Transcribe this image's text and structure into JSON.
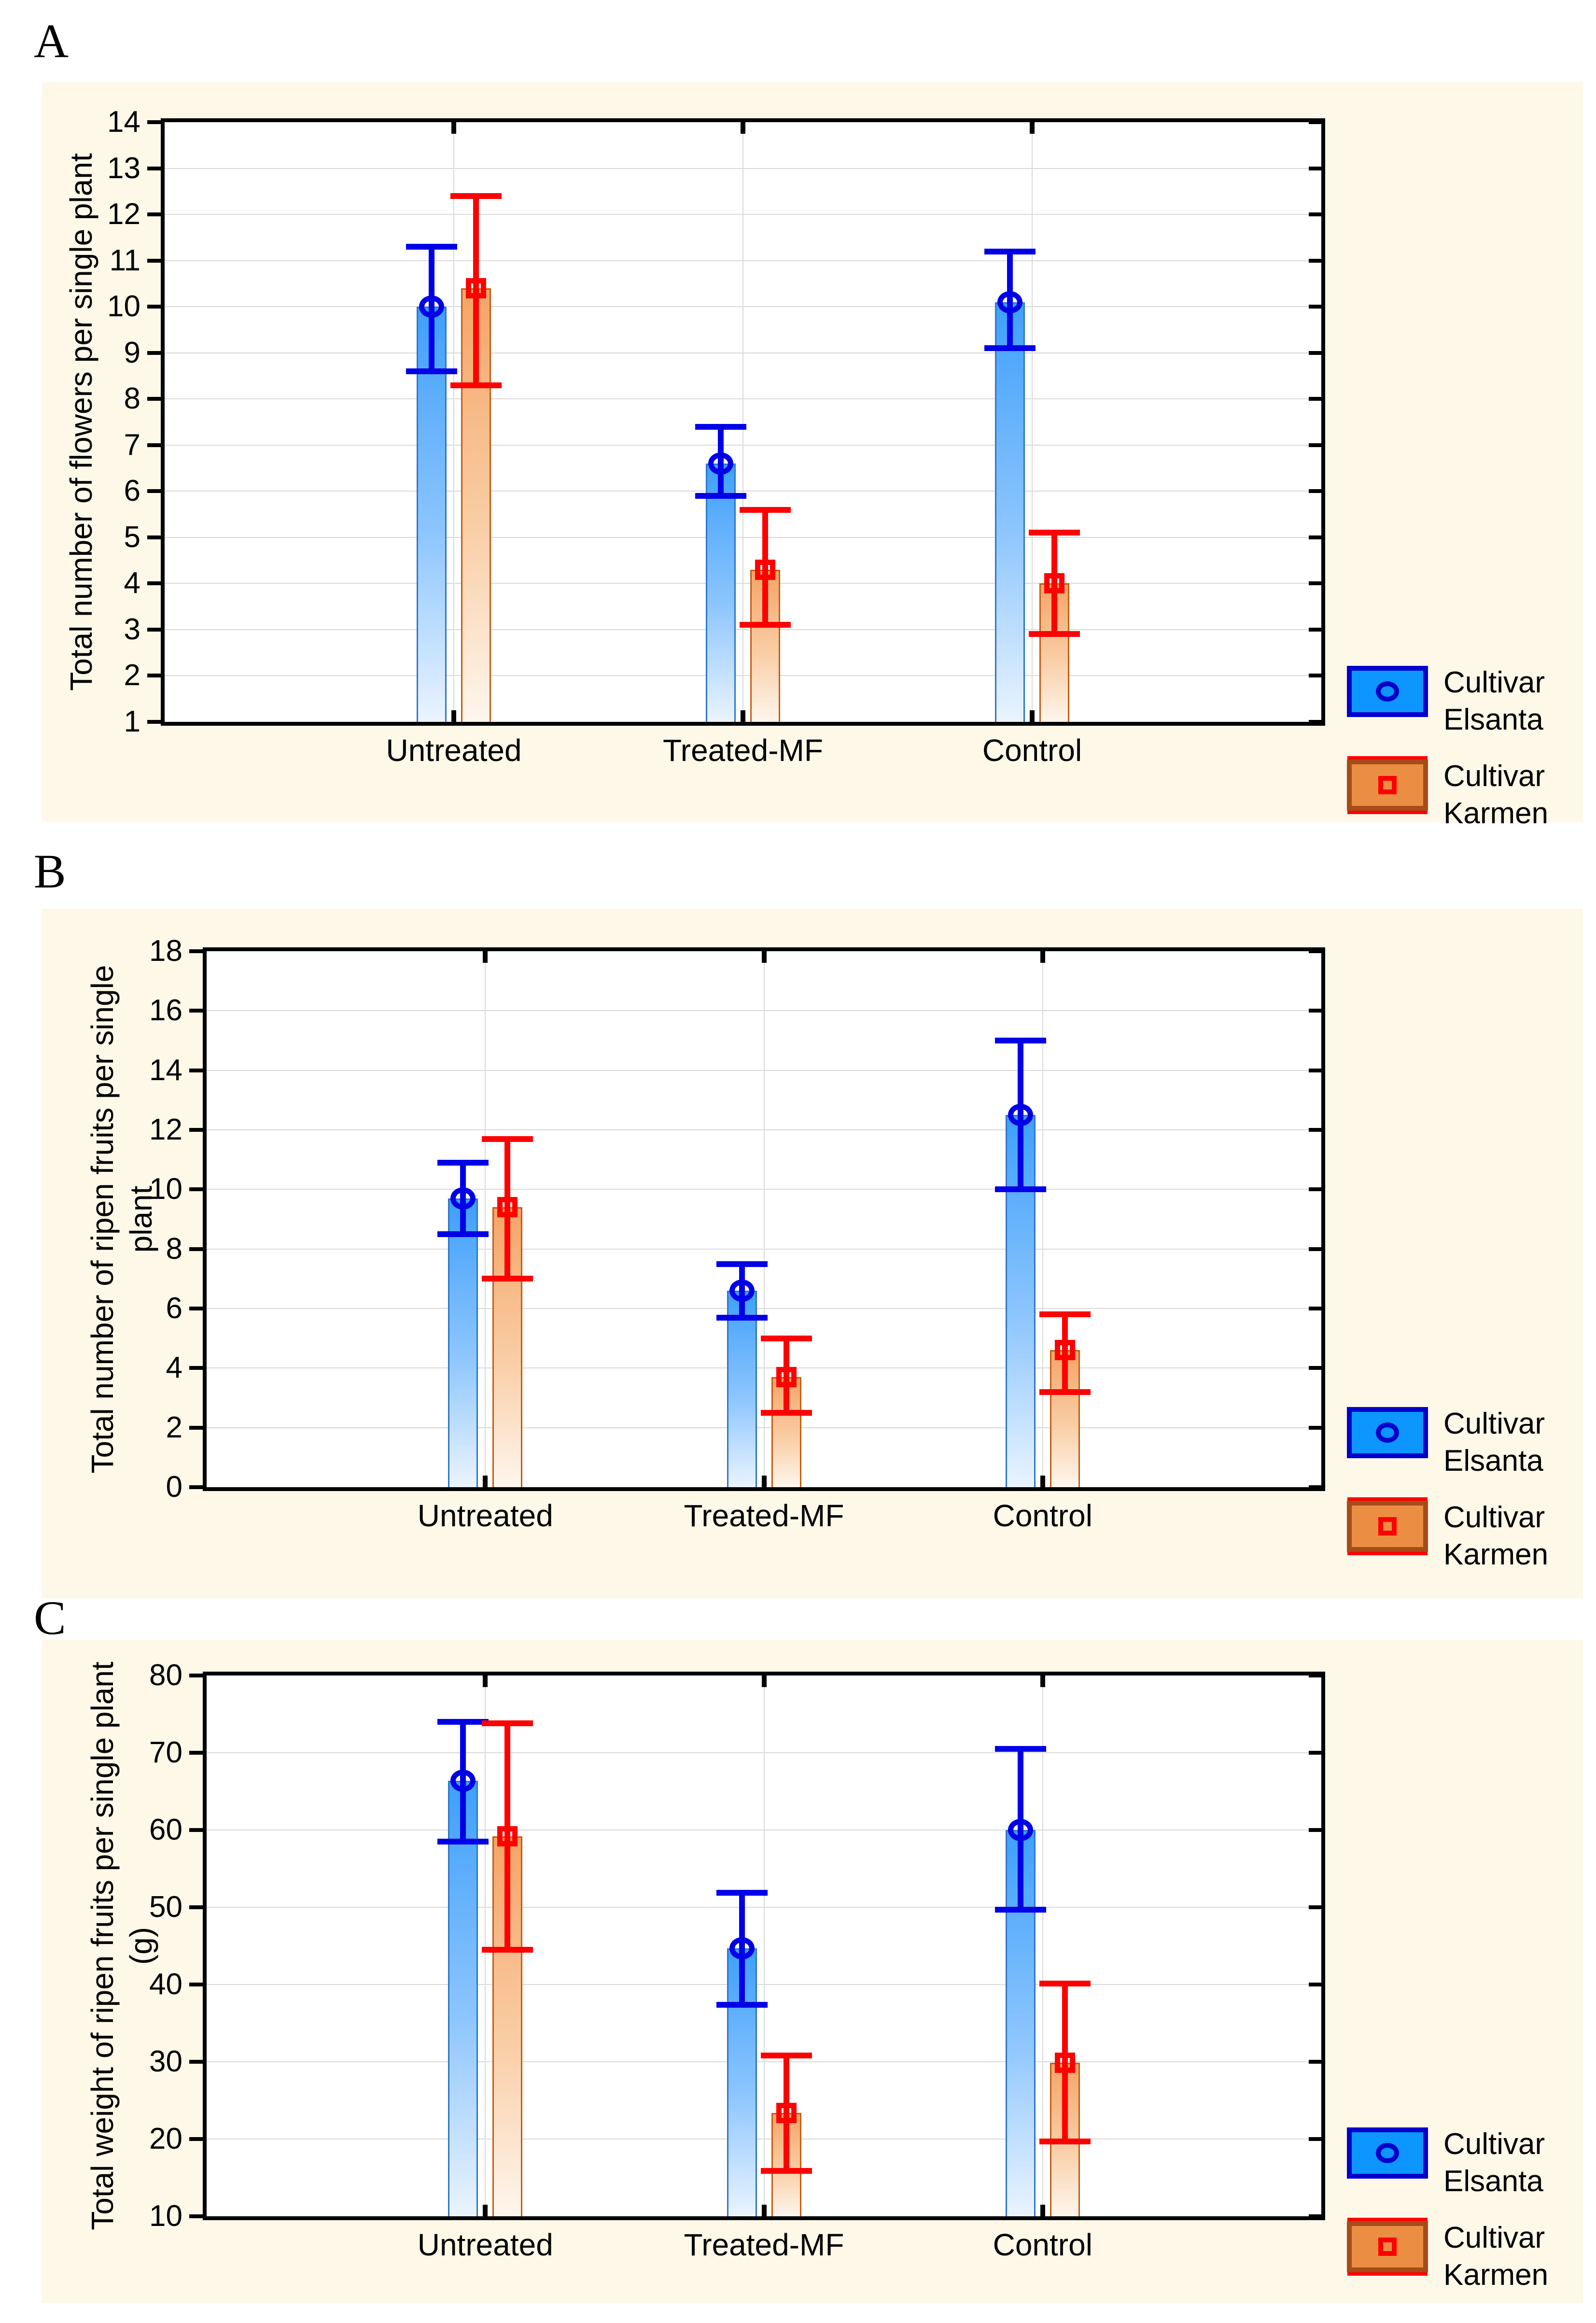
{
  "figure": {
    "background_color": "#FDF8E7",
    "plot_background": "#FFFFFF",
    "gridline_color": "#D9D9D9",
    "axis_color": "#000000"
  },
  "legend": {
    "position": "right-bottom",
    "items": [
      {
        "series": "elsanta",
        "line1": "Cultivar",
        "line2": "Elsanta",
        "swatch_fill": "#0D96FF",
        "swatch_border": "#0000CD",
        "marker": "circle-icon",
        "marker_color": "#0000E8"
      },
      {
        "series": "karmen",
        "line1": "Cultivar",
        "line2": "Karmen",
        "swatch_fill": "#EB8E44",
        "swatch_border": "#A64B1A",
        "marker": "square-icon",
        "marker_color": "#FF0000"
      }
    ]
  },
  "chart_data": [
    {
      "type": "bar",
      "panel_label": "A",
      "ylabel_lines": [
        "Total number of flowers per single plant"
      ],
      "categories": [
        "Untreated",
        "Treated-MF",
        "Control"
      ],
      "ylim": [
        1,
        14
      ],
      "ytick_step": 1,
      "yticks": [
        "14",
        "13",
        "12",
        "11",
        "10",
        "9",
        "8",
        "7",
        "6",
        "5",
        "4",
        "3",
        "2",
        "1"
      ],
      "grid": true,
      "legend_position": "right-bottom",
      "series": [
        {
          "name": "Cultivar Elsanta",
          "marker": "circle",
          "color": "#3E9FFB",
          "error_color": "#0000E8",
          "means": [
            10.0,
            6.6,
            10.1
          ],
          "ci_low": [
            8.6,
            5.9,
            9.1
          ],
          "ci_high": [
            11.3,
            7.4,
            11.2
          ]
        },
        {
          "name": "Cultivar Karmen",
          "marker": "square",
          "color": "#F5A467",
          "error_color": "#FF0000",
          "means": [
            10.4,
            4.3,
            4.0
          ],
          "ci_low": [
            8.3,
            3.1,
            2.9
          ],
          "ci_high": [
            12.4,
            5.6,
            5.1
          ]
        }
      ]
    },
    {
      "type": "bar",
      "panel_label": "B",
      "ylabel_lines": [
        "Total number of ripen fruits per single",
        "plant"
      ],
      "categories": [
        "Untreated",
        "Treated-MF",
        "Control"
      ],
      "ylim": [
        0,
        18
      ],
      "ytick_step": 2,
      "yticks": [
        "18",
        "16",
        "14",
        "12",
        "10",
        "8",
        "6",
        "4",
        "2",
        "0"
      ],
      "grid": true,
      "legend_position": "right-bottom",
      "series": [
        {
          "name": "Cultivar Elsanta",
          "marker": "circle",
          "color": "#3E9FFB",
          "error_color": "#0000E8",
          "means": [
            9.7,
            6.6,
            12.5
          ],
          "ci_low": [
            8.5,
            5.7,
            10.0
          ],
          "ci_high": [
            10.9,
            7.5,
            15.0
          ]
        },
        {
          "name": "Cultivar Karmen",
          "marker": "square",
          "color": "#F5A467",
          "error_color": "#FF0000",
          "means": [
            9.4,
            3.7,
            4.6
          ],
          "ci_low": [
            7.0,
            2.5,
            3.2
          ],
          "ci_high": [
            11.7,
            5.0,
            5.8
          ]
        }
      ]
    },
    {
      "type": "bar",
      "panel_label": "C",
      "ylabel_lines": [
        "Total weight of ripen fruits per single plant",
        "(g)"
      ],
      "categories": [
        "Untreated",
        "Treated-MF",
        "Control"
      ],
      "ylim": [
        10,
        80
      ],
      "ytick_step": 10,
      "yticks": [
        "80",
        "70",
        "60",
        "50",
        "40",
        "30",
        "20",
        "10"
      ],
      "grid": true,
      "legend_position": "right-bottom",
      "series": [
        {
          "name": "Cultivar Elsanta",
          "marker": "circle",
          "color": "#3E9FFB",
          "error_color": "#0000E8",
          "means": [
            66.4,
            44.7,
            60.0
          ],
          "ci_low": [
            58.5,
            37.4,
            49.7
          ],
          "ci_high": [
            74.0,
            51.9,
            70.5
          ]
        },
        {
          "name": "Cultivar Karmen",
          "marker": "square",
          "color": "#F5A467",
          "error_color": "#FF0000",
          "means": [
            59.2,
            23.4,
            29.9
          ],
          "ci_low": [
            44.5,
            15.9,
            19.7
          ],
          "ci_high": [
            73.8,
            30.8,
            40.1
          ]
        }
      ]
    }
  ]
}
